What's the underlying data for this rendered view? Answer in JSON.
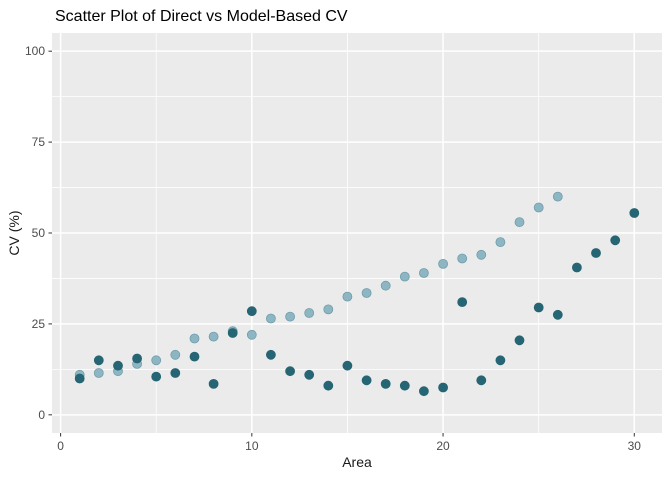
{
  "chart_data": {
    "type": "scatter",
    "title": "Scatter Plot of Direct vs Model-Based CV",
    "xlabel": "Area",
    "ylabel": "CV (%)",
    "xlim": [
      -0.45,
      31.45
    ],
    "ylim": [
      -5,
      105
    ],
    "x_ticks": [
      0,
      10,
      20,
      30
    ],
    "y_ticks": [
      0,
      25,
      50,
      75,
      100
    ],
    "x_minor_ticks": [
      5,
      15,
      25
    ],
    "y_minor_ticks": [
      12.5,
      37.5,
      62.5,
      87.5
    ],
    "grid": "major+minor white on gray panel",
    "legend": "none",
    "point_radius": 4.5,
    "colors": {
      "panel_bg": "#ebebeb",
      "grid": "#ffffff",
      "tick_mark": "#333333",
      "tick_label": "#4d4d4d",
      "axis_title": "#1a1a1a",
      "title": "#000000",
      "model_based_point": "#8db6c2",
      "direct_point": "#266573"
    },
    "series": [
      {
        "name": "Model-Based",
        "color": "#8db6c2",
        "stroke": "#6f9dad",
        "x": [
          1,
          2,
          3,
          4,
          5,
          6,
          7,
          8,
          9,
          10,
          11,
          12,
          13,
          14,
          15,
          16,
          17,
          18,
          19,
          20,
          21,
          22,
          23,
          24,
          25,
          26
        ],
        "y": [
          11,
          11.5,
          12,
          14,
          15,
          16.5,
          21,
          21.5,
          23,
          22,
          26.5,
          27,
          28,
          29,
          32.5,
          33.5,
          35.5,
          38,
          39,
          41.5,
          43,
          44,
          47.5,
          53,
          57,
          60
        ]
      },
      {
        "name": "Direct",
        "color": "#266573",
        "stroke": "#266573",
        "x": [
          1,
          2,
          3,
          4,
          5,
          6,
          7,
          8,
          9,
          10,
          11,
          12,
          13,
          14,
          15,
          16,
          17,
          18,
          19,
          20,
          21,
          22,
          23,
          24,
          25,
          26,
          27,
          28,
          29,
          30
        ],
        "y": [
          10,
          15,
          13.5,
          15.5,
          10.5,
          11.5,
          16,
          8.5,
          22.5,
          28.5,
          16.5,
          12,
          11,
          8,
          13.5,
          9.5,
          8.5,
          8,
          6.5,
          7.5,
          31,
          9.5,
          15,
          20.5,
          29.5,
          27.5,
          40.5,
          44.5,
          48,
          55.5
        ]
      }
    ]
  }
}
